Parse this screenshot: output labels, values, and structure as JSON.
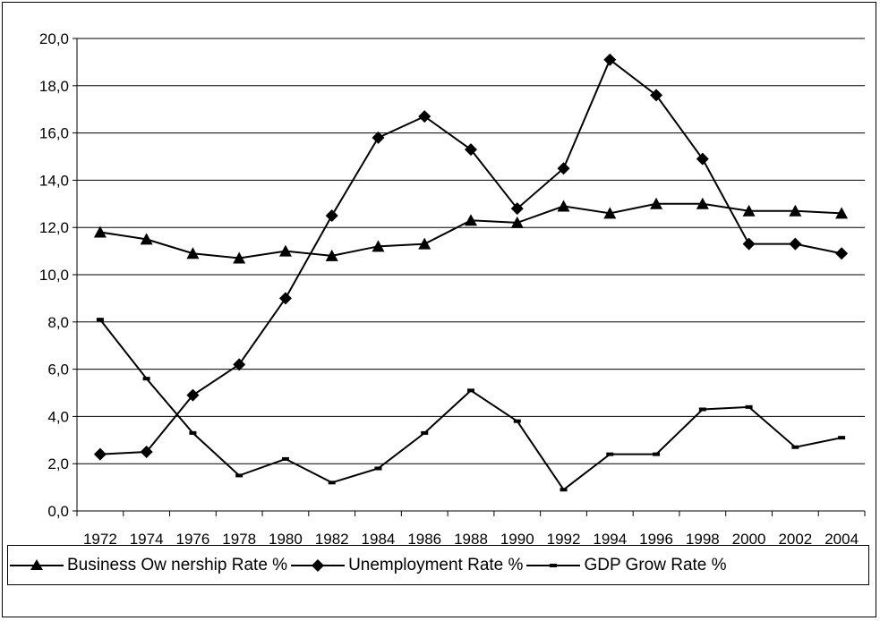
{
  "chart_data": {
    "type": "line",
    "title": "",
    "xlabel": "",
    "ylabel": "",
    "categories": [
      "1972",
      "1974",
      "1976",
      "1978",
      "1980",
      "1982",
      "1984",
      "1986",
      "1988",
      "1990",
      "1992",
      "1994",
      "1996",
      "1998",
      "2000",
      "2002",
      "2004"
    ],
    "ylim": [
      0,
      20
    ],
    "ytick_labels": [
      "0,0",
      "2,0",
      "4,0",
      "6,0",
      "8,0",
      "10,0",
      "12,0",
      "14,0",
      "16,0",
      "18,0",
      "20,0"
    ],
    "grid": "horizontal",
    "legend_position": "bottom",
    "series": [
      {
        "name": "Business Ow nership Rate %",
        "marker": "triangle",
        "color": "#000000",
        "values": [
          11.8,
          11.5,
          10.9,
          10.7,
          11.0,
          10.8,
          11.2,
          11.3,
          12.3,
          12.2,
          12.9,
          12.6,
          13.0,
          13.0,
          12.7,
          12.7,
          12.6
        ]
      },
      {
        "name": "Unemployment Rate %",
        "marker": "diamond",
        "color": "#000000",
        "values": [
          2.4,
          2.5,
          4.9,
          6.2,
          9.0,
          12.5,
          15.8,
          16.7,
          15.3,
          12.8,
          14.5,
          19.1,
          17.6,
          14.9,
          11.3,
          11.3,
          10.9
        ]
      },
      {
        "name": "GDP  Grow  Rate %",
        "marker": "dash",
        "color": "#000000",
        "values": [
          8.1,
          5.6,
          3.3,
          1.5,
          2.2,
          1.2,
          1.8,
          3.3,
          5.1,
          3.8,
          0.9,
          2.4,
          2.4,
          4.3,
          4.4,
          2.7,
          3.1
        ]
      }
    ]
  },
  "legend": {
    "business_label": "Business Ow nership Rate %",
    "unemployment_label": "Unemployment Rate %",
    "gdp_label": "GDP  Grow  Rate %"
  }
}
